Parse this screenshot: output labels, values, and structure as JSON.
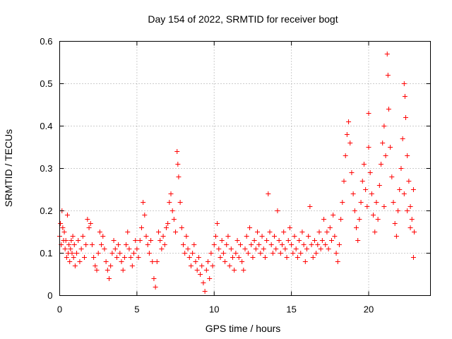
{
  "chart_data": {
    "type": "scatter",
    "title": "Day 154 of 2022, SRMTID for receiver bogt",
    "xlabel": "GPS time / hours",
    "ylabel": "SRMTID / TECUs",
    "xlim": [
      0,
      24
    ],
    "ylim": [
      0,
      0.6
    ],
    "xticks": [
      0,
      5,
      10,
      15,
      20
    ],
    "xtick_labels": [
      "0",
      "5",
      "10",
      "15",
      "20"
    ],
    "yticks": [
      0,
      0.1,
      0.2,
      0.3,
      0.4,
      0.5,
      0.6
    ],
    "ytick_labels": [
      "0",
      "0.1",
      "0.2",
      "0.3",
      "0.4",
      "0.5",
      "0.6"
    ],
    "grid": true,
    "marker": "plus",
    "color": "#ff0000",
    "series": [
      {
        "name": "SRMTID",
        "points": [
          [
            0.0,
            0.14
          ],
          [
            0.05,
            0.17
          ],
          [
            0.1,
            0.12
          ],
          [
            0.15,
            0.2
          ],
          [
            0.2,
            0.16
          ],
          [
            0.25,
            0.13
          ],
          [
            0.3,
            0.15
          ],
          [
            0.35,
            0.11
          ],
          [
            0.4,
            0.13
          ],
          [
            0.45,
            0.09
          ],
          [
            0.5,
            0.19
          ],
          [
            0.55,
            0.1
          ],
          [
            0.6,
            0.12
          ],
          [
            0.65,
            0.08
          ],
          [
            0.7,
            0.11
          ],
          [
            0.75,
            0.13
          ],
          [
            0.8,
            0.1
          ],
          [
            0.85,
            0.14
          ],
          [
            0.9,
            0.09
          ],
          [
            0.95,
            0.12
          ],
          [
            1.0,
            0.07
          ],
          [
            1.1,
            0.1
          ],
          [
            1.2,
            0.13
          ],
          [
            1.3,
            0.08
          ],
          [
            1.4,
            0.11
          ],
          [
            1.5,
            0.14
          ],
          [
            1.6,
            0.09
          ],
          [
            1.7,
            0.12
          ],
          [
            1.8,
            0.18
          ],
          [
            1.9,
            0.16
          ],
          [
            2.0,
            0.17
          ],
          [
            2.1,
            0.12
          ],
          [
            2.2,
            0.09
          ],
          [
            2.3,
            0.07
          ],
          [
            2.4,
            0.06
          ],
          [
            2.5,
            0.1
          ],
          [
            2.6,
            0.15
          ],
          [
            2.7,
            0.12
          ],
          [
            2.8,
            0.14
          ],
          [
            2.9,
            0.11
          ],
          [
            3.0,
            0.08
          ],
          [
            3.1,
            0.06
          ],
          [
            3.2,
            0.04
          ],
          [
            3.3,
            0.07
          ],
          [
            3.4,
            0.1
          ],
          [
            3.5,
            0.13
          ],
          [
            3.6,
            0.11
          ],
          [
            3.7,
            0.09
          ],
          [
            3.8,
            0.12
          ],
          [
            3.9,
            0.1
          ],
          [
            4.0,
            0.08
          ],
          [
            4.1,
            0.06
          ],
          [
            4.2,
            0.09
          ],
          [
            4.3,
            0.12
          ],
          [
            4.4,
            0.15
          ],
          [
            4.5,
            0.11
          ],
          [
            4.6,
            0.09
          ],
          [
            4.7,
            0.07
          ],
          [
            4.8,
            0.1
          ],
          [
            4.9,
            0.13
          ],
          [
            5.0,
            0.11
          ],
          [
            5.1,
            0.09
          ],
          [
            5.2,
            0.13
          ],
          [
            5.3,
            0.16
          ],
          [
            5.4,
            0.22
          ],
          [
            5.5,
            0.19
          ],
          [
            5.6,
            0.14
          ],
          [
            5.7,
            0.12
          ],
          [
            5.8,
            0.1
          ],
          [
            5.9,
            0.13
          ],
          [
            6.0,
            0.08
          ],
          [
            6.1,
            0.04
          ],
          [
            6.2,
            0.02
          ],
          [
            6.3,
            0.08
          ],
          [
            6.4,
            0.15
          ],
          [
            6.5,
            0.13
          ],
          [
            6.6,
            0.11
          ],
          [
            6.7,
            0.14
          ],
          [
            6.8,
            0.12
          ],
          [
            6.9,
            0.16
          ],
          [
            7.0,
            0.17
          ],
          [
            7.1,
            0.22
          ],
          [
            7.2,
            0.24
          ],
          [
            7.3,
            0.2
          ],
          [
            7.4,
            0.18
          ],
          [
            7.5,
            0.15
          ],
          [
            7.6,
            0.34
          ],
          [
            7.65,
            0.31
          ],
          [
            7.7,
            0.28
          ],
          [
            7.8,
            0.22
          ],
          [
            7.9,
            0.16
          ],
          [
            8.0,
            0.12
          ],
          [
            8.1,
            0.1
          ],
          [
            8.2,
            0.14
          ],
          [
            8.3,
            0.11
          ],
          [
            8.4,
            0.09
          ],
          [
            8.5,
            0.07
          ],
          [
            8.6,
            0.1
          ],
          [
            8.7,
            0.12
          ],
          [
            8.8,
            0.08
          ],
          [
            8.9,
            0.06
          ],
          [
            9.0,
            0.09
          ],
          [
            9.1,
            0.05
          ],
          [
            9.2,
            0.07
          ],
          [
            9.3,
            0.03
          ],
          [
            9.4,
            0.01
          ],
          [
            9.5,
            0.06
          ],
          [
            9.6,
            0.08
          ],
          [
            9.7,
            0.04
          ],
          [
            9.8,
            0.1
          ],
          [
            9.9,
            0.07
          ],
          [
            10.0,
            0.12
          ],
          [
            10.1,
            0.14
          ],
          [
            10.2,
            0.17
          ],
          [
            10.3,
            0.11
          ],
          [
            10.4,
            0.09
          ],
          [
            10.5,
            0.13
          ],
          [
            10.6,
            0.1
          ],
          [
            10.7,
            0.08
          ],
          [
            10.8,
            0.12
          ],
          [
            10.9,
            0.14
          ],
          [
            11.0,
            0.07
          ],
          [
            11.1,
            0.11
          ],
          [
            11.2,
            0.09
          ],
          [
            11.3,
            0.06
          ],
          [
            11.4,
            0.1
          ],
          [
            11.5,
            0.13
          ],
          [
            11.6,
            0.09
          ],
          [
            11.7,
            0.12
          ],
          [
            11.8,
            0.08
          ],
          [
            11.9,
            0.06
          ],
          [
            12.0,
            0.11
          ],
          [
            12.1,
            0.14
          ],
          [
            12.2,
            0.1
          ],
          [
            12.3,
            0.16
          ],
          [
            12.4,
            0.12
          ],
          [
            12.5,
            0.09
          ],
          [
            12.6,
            0.13
          ],
          [
            12.7,
            0.11
          ],
          [
            12.8,
            0.15
          ],
          [
            12.9,
            0.12
          ],
          [
            13.0,
            0.1
          ],
          [
            13.1,
            0.14
          ],
          [
            13.2,
            0.11
          ],
          [
            13.3,
            0.09
          ],
          [
            13.4,
            0.13
          ],
          [
            13.5,
            0.24
          ],
          [
            13.6,
            0.15
          ],
          [
            13.7,
            0.12
          ],
          [
            13.8,
            0.1
          ],
          [
            13.9,
            0.14
          ],
          [
            14.0,
            0.11
          ],
          [
            14.1,
            0.2
          ],
          [
            14.2,
            0.13
          ],
          [
            14.3,
            0.1
          ],
          [
            14.4,
            0.12
          ],
          [
            14.5,
            0.15
          ],
          [
            14.6,
            0.11
          ],
          [
            14.7,
            0.09
          ],
          [
            14.8,
            0.13
          ],
          [
            14.9,
            0.16
          ],
          [
            15.0,
            0.12
          ],
          [
            15.1,
            0.1
          ],
          [
            15.2,
            0.14
          ],
          [
            15.3,
            0.11
          ],
          [
            15.4,
            0.09
          ],
          [
            15.5,
            0.13
          ],
          [
            15.6,
            0.1
          ],
          [
            15.7,
            0.15
          ],
          [
            15.8,
            0.12
          ],
          [
            15.9,
            0.08
          ],
          [
            16.0,
            0.11
          ],
          [
            16.1,
            0.14
          ],
          [
            16.2,
            0.21
          ],
          [
            16.3,
            0.12
          ],
          [
            16.4,
            0.09
          ],
          [
            16.5,
            0.13
          ],
          [
            16.6,
            0.1
          ],
          [
            16.7,
            0.12
          ],
          [
            16.8,
            0.15
          ],
          [
            16.9,
            0.11
          ],
          [
            17.0,
            0.13
          ],
          [
            17.1,
            0.18
          ],
          [
            17.2,
            0.12
          ],
          [
            17.3,
            0.15
          ],
          [
            17.4,
            0.11
          ],
          [
            17.5,
            0.16
          ],
          [
            17.6,
            0.13
          ],
          [
            17.7,
            0.19
          ],
          [
            17.8,
            0.14
          ],
          [
            17.9,
            0.1
          ],
          [
            18.0,
            0.08
          ],
          [
            18.1,
            0.12
          ],
          [
            18.2,
            0.18
          ],
          [
            18.3,
            0.22
          ],
          [
            18.4,
            0.27
          ],
          [
            18.5,
            0.33
          ],
          [
            18.6,
            0.38
          ],
          [
            18.7,
            0.41
          ],
          [
            18.8,
            0.36
          ],
          [
            18.9,
            0.29
          ],
          [
            19.0,
            0.24
          ],
          [
            19.1,
            0.2
          ],
          [
            19.2,
            0.16
          ],
          [
            19.3,
            0.13
          ],
          [
            19.4,
            0.18
          ],
          [
            19.5,
            0.22
          ],
          [
            19.6,
            0.27
          ],
          [
            19.7,
            0.31
          ],
          [
            19.8,
            0.25
          ],
          [
            19.9,
            0.21
          ],
          [
            20.0,
            0.35
          ],
          [
            20.1,
            0.29
          ],
          [
            20.2,
            0.24
          ],
          [
            20.3,
            0.19
          ],
          [
            20.4,
            0.15
          ],
          [
            20.5,
            0.22
          ],
          [
            20.6,
            0.18
          ],
          [
            20.7,
            0.26
          ],
          [
            20.8,
            0.31
          ],
          [
            20.9,
            0.36
          ],
          [
            21.0,
            0.4
          ],
          [
            21.1,
            0.33
          ],
          [
            21.2,
            0.57
          ],
          [
            21.25,
            0.52
          ],
          [
            21.3,
            0.44
          ],
          [
            21.4,
            0.35
          ],
          [
            21.5,
            0.28
          ],
          [
            21.6,
            0.22
          ],
          [
            21.7,
            0.17
          ],
          [
            21.8,
            0.14
          ],
          [
            21.9,
            0.2
          ],
          [
            22.0,
            0.25
          ],
          [
            22.1,
            0.3
          ],
          [
            22.2,
            0.37
          ],
          [
            22.3,
            0.5
          ],
          [
            22.35,
            0.47
          ],
          [
            22.4,
            0.42
          ],
          [
            22.5,
            0.33
          ],
          [
            22.6,
            0.27
          ],
          [
            22.7,
            0.21
          ],
          [
            22.8,
            0.18
          ],
          [
            22.9,
            0.09
          ],
          [
            22.95,
            0.15
          ],
          [
            22.3,
            0.24
          ],
          [
            22.5,
            0.2
          ],
          [
            22.7,
            0.16
          ],
          [
            22.9,
            0.25
          ],
          [
            21.0,
            0.21
          ],
          [
            20.0,
            0.43
          ]
        ]
      }
    ]
  }
}
